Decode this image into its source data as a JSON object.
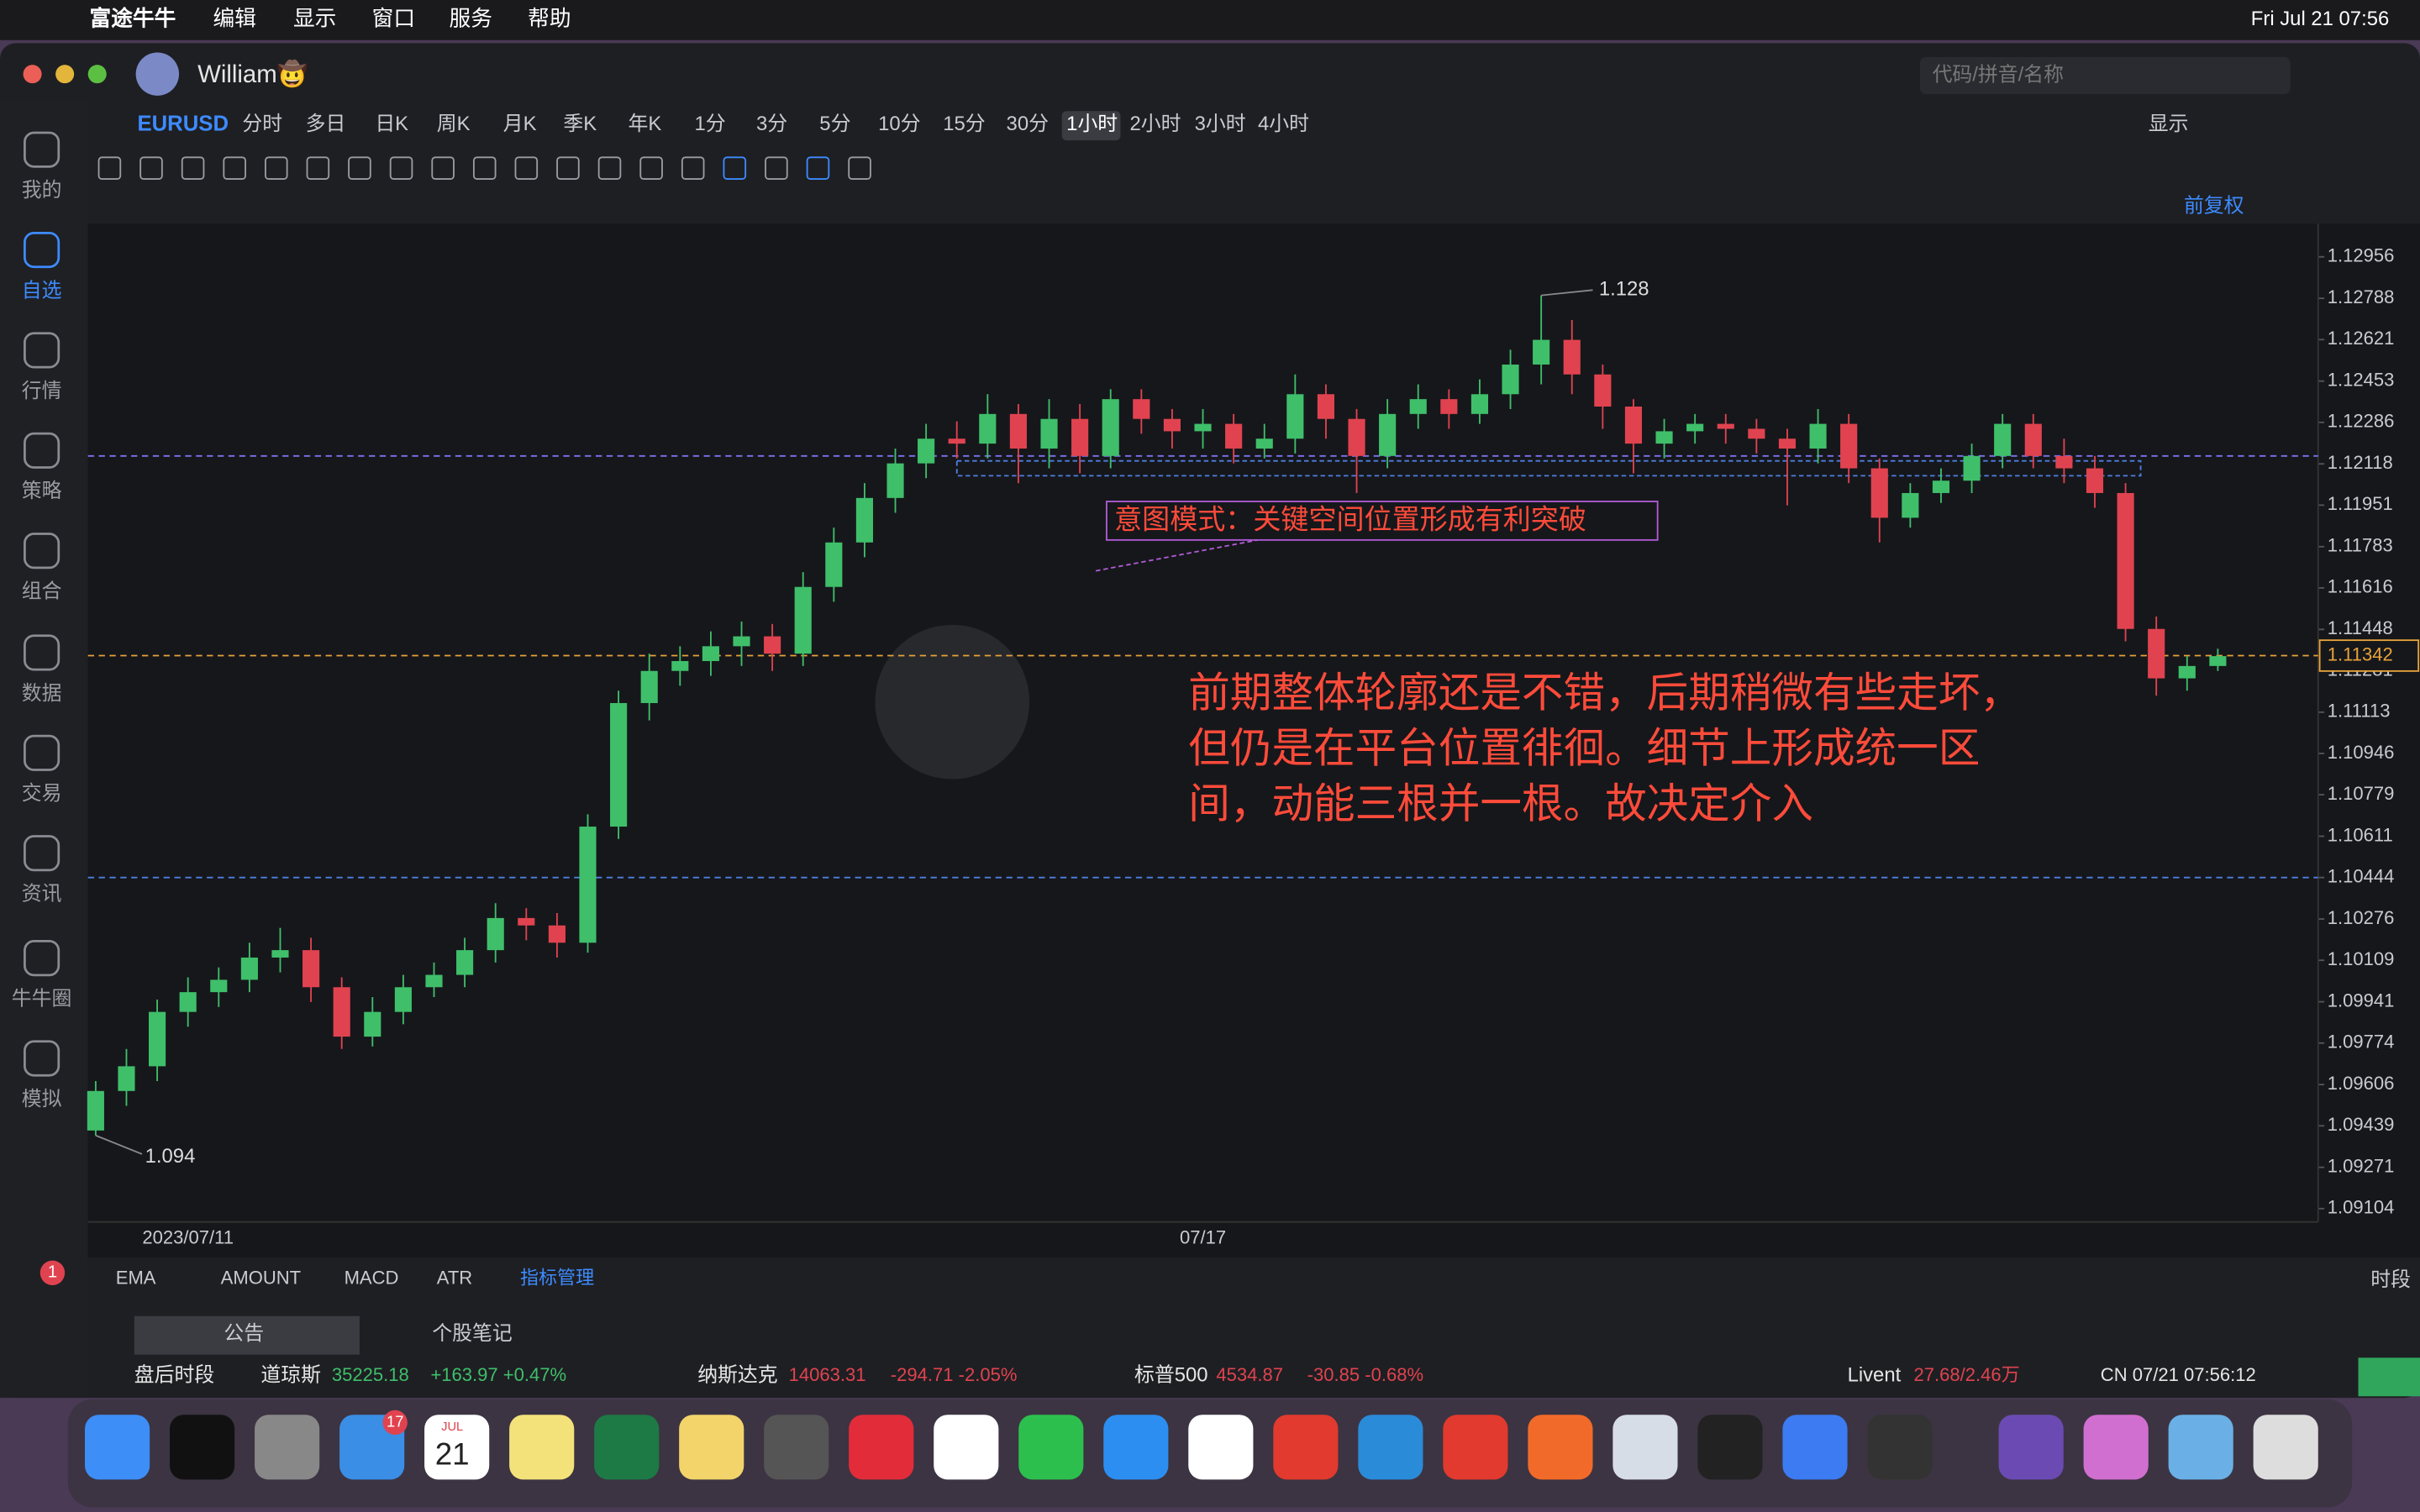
{
  "menubar": {
    "items": [
      "富途牛牛",
      "编辑",
      "显示",
      "窗口",
      "服务",
      "帮助"
    ],
    "clock": "Fri Jul 21  07:56"
  },
  "window": {
    "user": "William🤠",
    "search_placeholder": "代码/拼音/名称"
  },
  "sidebar": {
    "items": [
      "我的",
      "自选",
      "行情",
      "策略",
      "组合",
      "数据",
      "交易",
      "资讯",
      "牛牛圈",
      "模拟"
    ],
    "badge": "1"
  },
  "periods": {
    "symbol": "EURUSD",
    "items": [
      "分时",
      "多日",
      "日K",
      "周K",
      "月K",
      "季K",
      "年K",
      "1分",
      "3分",
      "5分",
      "10分",
      "15分",
      "30分",
      "1小时",
      "2小时",
      "3小时",
      "4小时"
    ],
    "active": "1小时",
    "display": "显示",
    "adjust": "前复权"
  },
  "indicators": {
    "items": [
      "EMA",
      "AMOUNT",
      "MACD",
      "ATR"
    ],
    "manage": "指标管理",
    "session": "时段"
  },
  "bottom_tabs": [
    "公告",
    "个股笔记"
  ],
  "ticker": {
    "session": "盘后时段",
    "indices": [
      {
        "name": "道琼斯",
        "value": "35225.18",
        "change": "+163.97 +0.47%",
        "color": "#3fbf6a"
      },
      {
        "name": "纳斯达克",
        "value": "14063.31",
        "change": "-294.71 -2.05%",
        "color": "#e0434f"
      },
      {
        "name": "标普500",
        "value": "4534.87",
        "change": "-30.85 -0.68%",
        "color": "#e0434f"
      }
    ],
    "stock": "Livent",
    "stock_value": "27.68/2.46万",
    "time": "CN 07/21 07:56:12"
  },
  "dock": {
    "mail_badge": "17",
    "calendar_month": "JUL",
    "calendar_day": "21"
  },
  "chart_data": {
    "type": "candlestick",
    "up_color": "#3fbf6a",
    "down_color": "#e0434f",
    "categories": [
      null,
      null,
      null,
      "2023/07/11",
      null,
      null,
      null,
      null,
      null,
      null,
      null,
      null,
      null,
      null,
      null,
      null,
      null,
      null,
      null,
      null,
      null,
      null,
      null,
      null,
      null,
      null,
      null,
      null,
      null,
      null,
      null,
      null,
      null,
      null,
      null,
      null,
      "07/17",
      null,
      null,
      null,
      null,
      null,
      null,
      null,
      null,
      null,
      null,
      null,
      null,
      null,
      null,
      null,
      null,
      null,
      null,
      null,
      null,
      null,
      null,
      null,
      null,
      null,
      null,
      null,
      null,
      null,
      null,
      null,
      null,
      null
    ],
    "open": [
      1.0942,
      1.0958,
      1.0968,
      1.099,
      1.0998,
      1.1003,
      1.1012,
      1.1015,
      1.1,
      1.098,
      1.099,
      1.1,
      1.1005,
      1.1015,
      1.1028,
      1.1025,
      1.1018,
      1.1065,
      1.1115,
      1.1128,
      1.1132,
      1.1138,
      1.1142,
      1.1135,
      1.1162,
      1.118,
      1.1198,
      1.1212,
      1.1222,
      1.122,
      1.1232,
      1.1218,
      1.123,
      1.1215,
      1.1238,
      1.123,
      1.1225,
      1.1228,
      1.1218,
      1.1222,
      1.124,
      1.123,
      1.1215,
      1.1232,
      1.1238,
      1.1232,
      1.124,
      1.1252,
      1.1262,
      1.1248,
      1.1235,
      1.122,
      1.1225,
      1.1228,
      1.1226,
      1.1222,
      1.1218,
      1.1228,
      1.121,
      1.119,
      1.12,
      1.1205,
      1.1215,
      1.1228,
      1.1215,
      1.121,
      1.12,
      1.1145,
      1.1125,
      1.113
    ],
    "high": [
      1.0962,
      1.0975,
      1.0995,
      1.1004,
      1.1008,
      1.1018,
      1.1024,
      1.102,
      1.1004,
      1.0996,
      1.1005,
      1.101,
      1.102,
      1.1034,
      1.1032,
      1.103,
      1.107,
      1.112,
      1.1135,
      1.1138,
      1.1144,
      1.1148,
      1.1147,
      1.1168,
      1.1186,
      1.1204,
      1.1218,
      1.1228,
      1.1229,
      1.124,
      1.1236,
      1.1238,
      1.1236,
      1.1242,
      1.1242,
      1.1234,
      1.1234,
      1.1232,
      1.1228,
      1.1248,
      1.1244,
      1.1234,
      1.1238,
      1.1244,
      1.1242,
      1.1246,
      1.1258,
      1.128,
      1.127,
      1.1252,
      1.1238,
      1.123,
      1.1232,
      1.1232,
      1.123,
      1.1226,
      1.1234,
      1.1232,
      1.1214,
      1.1204,
      1.121,
      1.122,
      1.1232,
      1.1232,
      1.1222,
      1.1215,
      1.1204,
      1.115,
      1.1134,
      1.1137
    ],
    "low": [
      1.094,
      1.0952,
      1.0962,
      1.0984,
      1.0992,
      1.0998,
      1.1006,
      1.0994,
      1.0975,
      1.0976,
      1.0985,
      1.0996,
      1.1,
      1.101,
      1.1019,
      1.1012,
      1.1014,
      1.106,
      1.1108,
      1.1122,
      1.1126,
      1.113,
      1.1128,
      1.113,
      1.1156,
      1.1174,
      1.1192,
      1.1206,
      1.1214,
      1.1214,
      1.1204,
      1.121,
      1.1208,
      1.121,
      1.1224,
      1.1218,
      1.1218,
      1.1212,
      1.1214,
      1.1216,
      1.1222,
      1.12,
      1.121,
      1.1226,
      1.1226,
      1.1228,
      1.1234,
      1.1244,
      1.124,
      1.1226,
      1.1208,
      1.1214,
      1.122,
      1.122,
      1.1216,
      1.1195,
      1.1212,
      1.1204,
      1.118,
      1.1186,
      1.1196,
      1.12,
      1.121,
      1.121,
      1.1204,
      1.1194,
      1.114,
      1.1118,
      1.112,
      1.1128
    ],
    "close": [
      1.0958,
      1.0968,
      1.099,
      1.0998,
      1.1003,
      1.1012,
      1.1015,
      1.1,
      1.098,
      1.099,
      1.1,
      1.1005,
      1.1015,
      1.1028,
      1.1025,
      1.1018,
      1.1065,
      1.1115,
      1.1128,
      1.1132,
      1.1138,
      1.1142,
      1.1135,
      1.1162,
      1.118,
      1.1198,
      1.1212,
      1.1222,
      1.122,
      1.1232,
      1.1218,
      1.123,
      1.1215,
      1.1238,
      1.123,
      1.1225,
      1.1228,
      1.1218,
      1.1222,
      1.124,
      1.123,
      1.1215,
      1.1232,
      1.1238,
      1.1232,
      1.124,
      1.1252,
      1.1262,
      1.1248,
      1.1235,
      1.122,
      1.1225,
      1.1228,
      1.1226,
      1.1222,
      1.1218,
      1.1228,
      1.121,
      1.119,
      1.12,
      1.1205,
      1.1215,
      1.1228,
      1.1215,
      1.121,
      1.12,
      1.1145,
      1.1125,
      1.113,
      1.1134
    ],
    "ylim": [
      1.0905,
      1.1309
    ],
    "yticks": [
      1.12956,
      1.12788,
      1.12621,
      1.12453,
      1.12286,
      1.12118,
      1.11951,
      1.11783,
      1.11616,
      1.11448,
      1.11281,
      1.11113,
      1.10946,
      1.10779,
      1.10611,
      1.10444,
      1.10276,
      1.10109,
      1.09941,
      1.09774,
      1.09606,
      1.09439,
      1.09271,
      1.09104
    ],
    "max_label": 1.128,
    "min_label": 1.094,
    "last_price": 1.11342,
    "last_color": "#e8a33a",
    "hlines": [
      {
        "value": 1.1215,
        "color": "#7b73f0"
      },
      {
        "value": 1.10444,
        "color": "#4d7fe0"
      }
    ],
    "zone": [
      1.1207,
      1.1213
    ],
    "zone_color": "#4d7fe0",
    "annotation_box": "意图模式：关键空间位置形成有利突破",
    "annotation_box_color": "#b05cd6",
    "annotation_text": [
      "前期整体轮廓还是不错，后期稍微有些走坏，",
      "但仍是在平台位置徘徊。细节上形成统一区",
      "间，动能三根并一根。故决定介入"
    ],
    "annotation_text_color": "#ff4b3a"
  }
}
